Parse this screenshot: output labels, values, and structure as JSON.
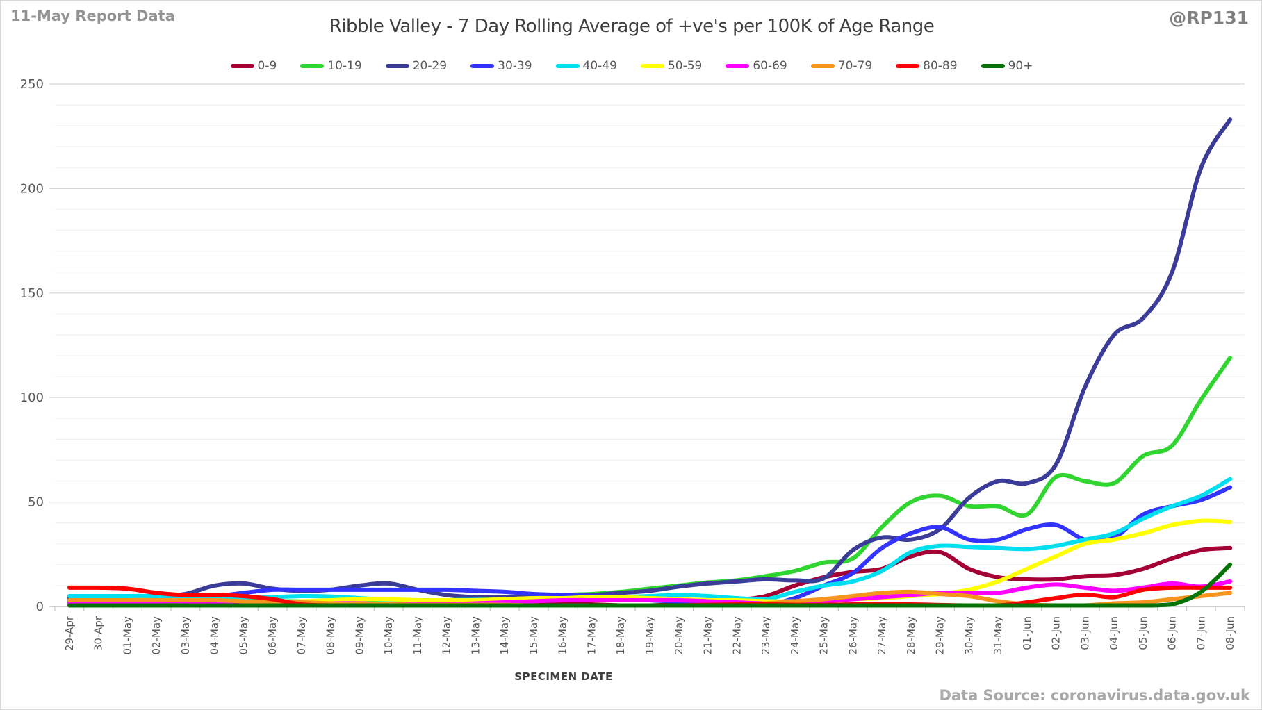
{
  "header": {
    "report_label": "11-May Report Data",
    "handle": "@RP131"
  },
  "footer": {
    "source": "Data Source: coronavirus.data.gov.uk"
  },
  "chart_data": {
    "type": "line",
    "title": "Ribble Valley - 7 Day Rolling Average of +ve's per 100K of Age Range",
    "xlabel": "SPECIMEN DATE",
    "ylabel": "",
    "ylim": [
      0,
      250
    ],
    "yticks": [
      0,
      50,
      100,
      150,
      200,
      250
    ],
    "minor_grid_step": 10,
    "grid": true,
    "legend_position": "top",
    "smoothed": true,
    "categories": [
      "29-Apr",
      "30-Apr",
      "01-May",
      "02-May",
      "03-May",
      "04-May",
      "05-May",
      "06-May",
      "07-May",
      "08-May",
      "09-May",
      "10-May",
      "11-May",
      "12-May",
      "13-May",
      "14-May",
      "15-May",
      "16-May",
      "17-May",
      "18-May",
      "19-May",
      "20-May",
      "21-May",
      "22-May",
      "23-May",
      "24-May",
      "25-May",
      "26-May",
      "27-May",
      "28-May",
      "29-May",
      "30-May",
      "31-May",
      "01-Jun",
      "02-Jun",
      "03-Jun",
      "04-Jun",
      "05-Jun",
      "06-Jun",
      "07-Jun",
      "08-Jun"
    ],
    "series": [
      {
        "name": "0-9",
        "color": "#A50034",
        "values": [
          2.5,
          2.5,
          2.5,
          3,
          3,
          2.5,
          2,
          2,
          2,
          2,
          2,
          1.5,
          1.5,
          2,
          2.5,
          2.5,
          2,
          1.5,
          1,
          0.5,
          0.5,
          1,
          1.5,
          3,
          5,
          10,
          14,
          16.5,
          18,
          24,
          26,
          18,
          14,
          13,
          13,
          14.5,
          15,
          18,
          23,
          27,
          28
        ]
      },
      {
        "name": "10-19",
        "color": "#30D530",
        "values": [
          1.5,
          1.5,
          1.5,
          2,
          2,
          2,
          2.5,
          2.5,
          2.5,
          2.5,
          3,
          3,
          3,
          3,
          3.5,
          4,
          4.5,
          5.5,
          6,
          7,
          8.5,
          10,
          11.5,
          12.5,
          14.5,
          17,
          21,
          23,
          38,
          50,
          53,
          48,
          48,
          44,
          62,
          60,
          59,
          72,
          77,
          99,
          119
        ]
      },
      {
        "name": "20-29",
        "color": "#3B3B98",
        "values": [
          5,
          5,
          5,
          5,
          6,
          10,
          11,
          8.5,
          7.5,
          8,
          10,
          11,
          8,
          5.5,
          4.5,
          4.5,
          4.5,
          5,
          5.5,
          6.5,
          7.5,
          9.5,
          11,
          12,
          13,
          12.5,
          13.5,
          27,
          33,
          32,
          37,
          52,
          60,
          59,
          68,
          105,
          130,
          138,
          160,
          210,
          233
        ]
      },
      {
        "name": "30-39",
        "color": "#3333FF",
        "values": [
          4,
          4,
          4,
          4,
          4.5,
          5,
          6.5,
          8,
          8,
          8,
          8,
          8,
          8,
          8,
          7.5,
          7,
          6,
          5.5,
          5,
          4.5,
          3,
          2.5,
          2,
          1.5,
          1,
          4,
          10,
          16,
          28,
          35,
          38,
          32,
          32,
          37,
          39,
          32,
          33,
          44,
          48,
          51,
          57
        ]
      },
      {
        "name": "40-49",
        "color": "#00DFF0",
        "values": [
          5,
          5,
          5,
          5,
          4.5,
          4.5,
          4.5,
          4.5,
          5,
          4.8,
          4,
          3.2,
          3,
          3,
          3.2,
          3.2,
          3,
          3.5,
          4,
          4.5,
          5,
          5.5,
          5,
          4,
          3.5,
          7,
          10,
          12,
          17,
          26,
          29,
          28.5,
          28,
          27.5,
          29,
          32,
          35,
          42,
          48,
          53,
          61
        ]
      },
      {
        "name": "50-59",
        "color": "#FFFF00",
        "values": [
          2.5,
          2.5,
          3,
          3,
          2.5,
          2,
          2,
          2,
          2.5,
          3,
          3.5,
          3.5,
          3,
          3,
          3,
          3.5,
          4,
          4,
          4.5,
          4.5,
          4,
          3.5,
          3,
          3,
          2.5,
          2.5,
          3,
          3.5,
          4,
          5,
          6,
          8,
          12,
          18,
          24,
          30,
          32,
          35,
          39,
          41,
          40.5
        ]
      },
      {
        "name": "60-69",
        "color": "#FF00FF",
        "values": [
          2,
          2,
          2,
          2.5,
          2.5,
          2,
          1.5,
          1.5,
          1.5,
          1.5,
          1.5,
          1,
          1,
          1,
          1.5,
          2,
          2.5,
          3,
          3,
          3,
          3,
          3,
          2.5,
          2,
          1.5,
          2,
          2.5,
          3.5,
          4.5,
          5.5,
          6.5,
          6.5,
          6.5,
          9,
          10.5,
          9,
          7.5,
          9,
          11,
          9.5,
          12
        ]
      },
      {
        "name": "70-79",
        "color": "#F7941D",
        "values": [
          3,
          3,
          3,
          3,
          3,
          3,
          2.5,
          2,
          2,
          1.5,
          1,
          1,
          0.8,
          0.8,
          0.8,
          0.8,
          0.5,
          0.5,
          0.5,
          0.5,
          0.5,
          0.5,
          0.5,
          1,
          1.5,
          2.5,
          3.5,
          5,
          6.5,
          7,
          6,
          5,
          2.5,
          1,
          0.5,
          0.5,
          1.5,
          2,
          3.5,
          5,
          6.5
        ]
      },
      {
        "name": "80-89",
        "color": "#FF0000",
        "values": [
          9,
          9,
          8.5,
          6.5,
          5.5,
          5.5,
          5,
          3.5,
          1,
          0.5,
          0.3,
          0.3,
          0.3,
          0.3,
          0.3,
          0.3,
          0.3,
          0.3,
          0.3,
          0.5,
          0.5,
          0.5,
          0.8,
          1,
          1,
          0.8,
          0.8,
          1,
          1,
          1,
          0.7,
          0.3,
          0.3,
          2,
          4,
          5.7,
          4.5,
          8,
          9,
          9,
          9
        ]
      },
      {
        "name": "90+",
        "color": "#067306",
        "values": [
          0.5,
          0.5,
          0.5,
          0.5,
          0.5,
          0.4,
          0.4,
          0.4,
          0.3,
          0.3,
          0.3,
          0.3,
          0.3,
          0.3,
          0.3,
          0.3,
          0.3,
          0.3,
          0.3,
          0.3,
          0.3,
          0.3,
          0.3,
          0.3,
          0.3,
          0.3,
          0.3,
          0.3,
          0.3,
          0.3,
          0.3,
          0.3,
          0.3,
          0.3,
          0.3,
          0.3,
          0.3,
          0.3,
          1,
          7,
          20
        ]
      }
    ]
  }
}
